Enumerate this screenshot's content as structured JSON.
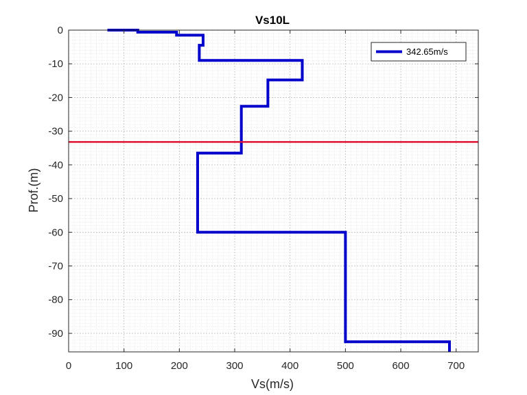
{
  "chart_data": {
    "type": "line",
    "title": "Vs10L",
    "xlabel": "Vs(m/s)",
    "ylabel": "Prof.(m)",
    "xlim": [
      0,
      740
    ],
    "ylim": [
      -95.5,
      0
    ],
    "xticks": [
      0,
      100,
      200,
      300,
      400,
      500,
      600,
      700
    ],
    "yticks": [
      0,
      -10,
      -20,
      -30,
      -40,
      -50,
      -60,
      -70,
      -80,
      -90
    ],
    "grid": "major-and-minor",
    "legend_position": "top-right",
    "series": [
      {
        "name": "342.65m/s",
        "color": "#0000cc",
        "x": [
          70,
          125,
          125,
          195,
          195,
          243,
          243,
          236,
          236,
          422,
          422,
          360,
          360,
          312,
          312,
          233,
          233,
          500,
          500,
          688,
          688
        ],
        "y": [
          0,
          0,
          -0.6,
          -0.6,
          -1.5,
          -1.5,
          -4.5,
          -4.5,
          -9,
          -9,
          -14.8,
          -14.8,
          -22.6,
          -22.6,
          -36.5,
          -36.5,
          -60,
          -60,
          -92.5,
          -92.5,
          -95.5
        ]
      }
    ],
    "reference_line": {
      "y": -33.2,
      "color": "#dd1133"
    }
  }
}
